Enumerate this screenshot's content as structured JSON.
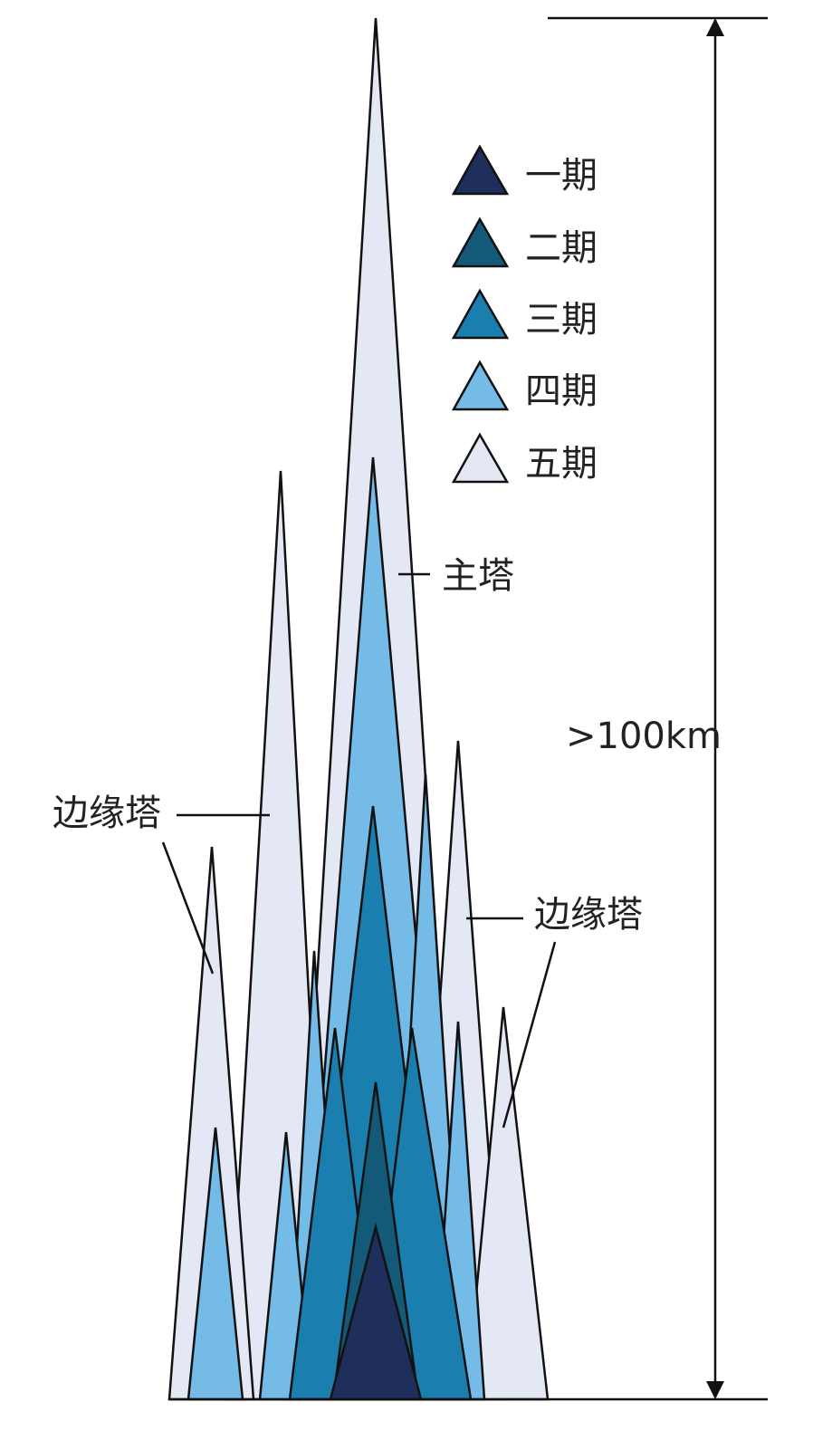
{
  "legend": {
    "items": [
      {
        "label": "一期"
      },
      {
        "label": "二期"
      },
      {
        "label": "三期"
      },
      {
        "label": "四期"
      },
      {
        "label": "五期"
      }
    ]
  },
  "labels": {
    "main_tower": "主塔",
    "edge_tower_left": "边缘塔",
    "edge_tower_right": "边缘塔",
    "height": ">100km"
  }
}
